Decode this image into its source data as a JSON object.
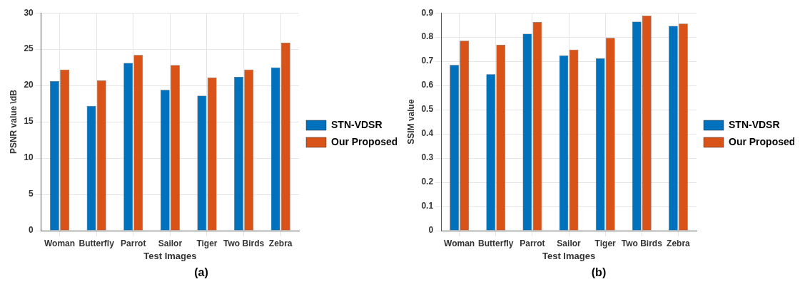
{
  "chart_data": [
    {
      "type": "bar",
      "categories": [
        "Woman",
        "Butterfly",
        "Parrot",
        "Sailor",
        "Tiger",
        "Two Birds",
        "Zebra"
      ],
      "xlabel": "Test Images",
      "ylabel": "PSNR value \\dB",
      "ylim": [
        0,
        30
      ],
      "yticks": [
        0,
        5,
        10,
        15,
        20,
        25,
        30
      ],
      "grid": true,
      "legend": "right",
      "annotations": [
        "(a)"
      ],
      "series": [
        {
          "name": "STN-VDSR",
          "color": "#0072bd",
          "values": [
            20.6,
            17.2,
            23.1,
            19.4,
            18.6,
            21.2,
            22.5
          ]
        },
        {
          "name": "Our Proposed",
          "color": "#d95319",
          "values": [
            22.2,
            20.7,
            24.2,
            22.8,
            21.1,
            22.2,
            25.9
          ]
        }
      ]
    },
    {
      "type": "bar",
      "categories": [
        "Woman",
        "Butterfly",
        "Parrot",
        "Sailor",
        "Tiger",
        "Two Birds",
        "Zebra"
      ],
      "xlabel": "Test Images",
      "ylabel": "SSIM value",
      "ylim": [
        0,
        0.9
      ],
      "yticks": [
        0,
        0.1,
        0.2,
        0.3,
        0.4,
        0.5,
        0.6,
        0.7,
        0.8,
        0.9
      ],
      "grid": true,
      "legend": "right",
      "annotations": [
        "(b)"
      ],
      "series": [
        {
          "name": "STN-VDSR",
          "color": "#0072bd",
          "values": [
            0.685,
            0.647,
            0.814,
            0.724,
            0.712,
            0.864,
            0.846
          ]
        },
        {
          "name": "Our Proposed",
          "color": "#d95319",
          "values": [
            0.785,
            0.768,
            0.862,
            0.748,
            0.797,
            0.889,
            0.856
          ]
        }
      ]
    }
  ]
}
